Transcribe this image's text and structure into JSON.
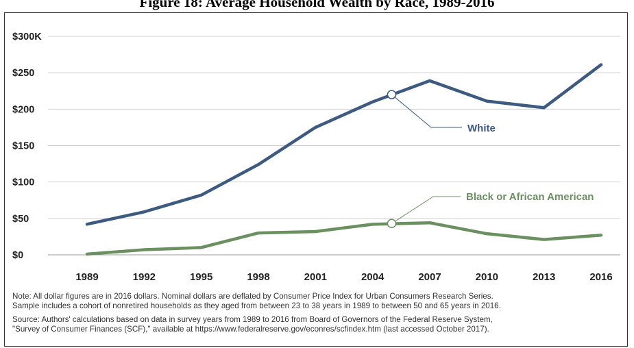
{
  "chart_data": {
    "type": "line",
    "title": "Figure 18: Average Household Wealth by Race, 1989-2016",
    "xlabel": "",
    "ylabel": "",
    "categories": [
      "1989",
      "1992",
      "1995",
      "1998",
      "2001",
      "2004",
      "2007",
      "2010",
      "2013",
      "2016"
    ],
    "x": [
      1989,
      1992,
      1995,
      1998,
      2001,
      2004,
      2007,
      2010,
      2013,
      2016
    ],
    "ylim": [
      0,
      300
    ],
    "yticks": [
      0,
      50,
      100,
      150,
      200,
      250,
      300
    ],
    "ytick_labels": [
      "$0",
      "$50",
      "$100",
      "$150",
      "$200",
      "$250",
      "$300K"
    ],
    "grid": true,
    "series": [
      {
        "name": "White",
        "color": "#3d5a80",
        "values": [
          42,
          59,
          82,
          124,
          175,
          210,
          239,
          211,
          202,
          261
        ],
        "annotation": {
          "x": 2005,
          "y": 220
        }
      },
      {
        "name": "Black or African American",
        "color": "#6b9060",
        "values": [
          1,
          7,
          10,
          30,
          32,
          42,
          44,
          29,
          21,
          27
        ],
        "annotation": {
          "x": 2005,
          "y": 43
        }
      }
    ]
  },
  "notes": {
    "note_line1": "Note: All dollar figures are in 2016 dollars. Nominal dollars are deflated by Consumer Price Index for Urban Consumers Research Series.",
    "note_line2": "Sample includes a cohort of nonretired households as they aged from between 23 to 38 years in 1989 to between 50 and 65 years in 2016.",
    "source_line1": "Source: Authors' calculations based on data in survey years from 1989 to 2016 from Board of Governors of the Federal Reserve System,",
    "source_line2": "\"Survey of Consumer Finances (SCF),\" available at https://www.federalreserve.gov/econres/scfindex.htm (last accessed October 2017)."
  }
}
